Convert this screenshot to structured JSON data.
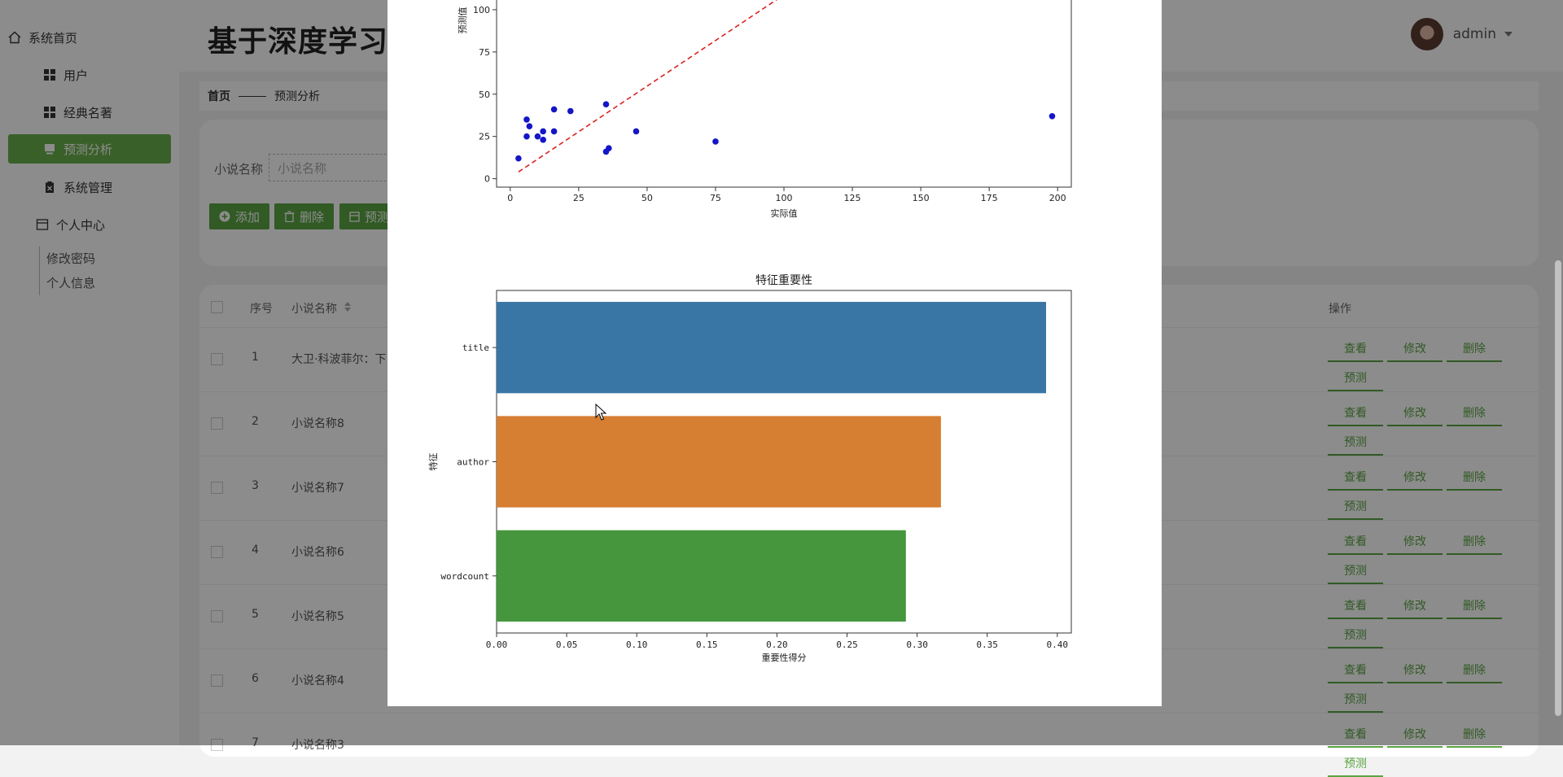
{
  "sidebar": {
    "items": [
      {
        "label": "系统首页",
        "icon": "home-icon"
      },
      {
        "label": "用户",
        "icon": "grid-icon"
      },
      {
        "label": "经典名著",
        "icon": "grid-icon"
      },
      {
        "label": "预测分析",
        "icon": "monitor-icon",
        "active": true
      },
      {
        "label": "系统管理",
        "icon": "clipboard-icon"
      },
      {
        "label": "个人中心",
        "icon": "window-icon"
      }
    ],
    "sub_items": [
      "修改密码",
      "个人信息"
    ]
  },
  "header": {
    "title": "基于深度学习的",
    "username": "admin"
  },
  "breadcrumb": {
    "home": "首页",
    "current": "预测分析"
  },
  "search": {
    "label": "小说名称",
    "placeholder": "小说名称"
  },
  "buttons": {
    "add": "添加",
    "delete": "删除",
    "predict": "预测"
  },
  "table": {
    "headers": {
      "index": "序号",
      "name": "小说名称",
      "ops": "操作"
    },
    "rows": [
      {
        "index": "1",
        "name": "大卫·科波菲尔：下"
      },
      {
        "index": "2",
        "name": "小说名称8"
      },
      {
        "index": "3",
        "name": "小说名称7"
      },
      {
        "index": "4",
        "name": "小说名称6"
      },
      {
        "index": "5",
        "name": "小说名称5"
      },
      {
        "index": "6",
        "name": "小说名称4"
      },
      {
        "index": "7",
        "name": "小说名称3"
      }
    ],
    "ops": {
      "view": "查看",
      "edit": "修改",
      "delete": "删除",
      "predict": "预测"
    }
  },
  "chart_data": [
    {
      "type": "scatter",
      "title": "",
      "xlabel": "实际值",
      "ylabel": "预测值",
      "xlim": [
        -5,
        205
      ],
      "ylim": [
        -5,
        125
      ],
      "xticks": [
        0,
        25,
        50,
        75,
        100,
        125,
        150,
        175,
        200
      ],
      "yticks": [
        0,
        25,
        50,
        75,
        100
      ],
      "point_color": "#1515c8",
      "reference_line": {
        "from": [
          3,
          4
        ],
        "to": [
          115,
          125
        ],
        "style": "dashed",
        "color": "#dd2222"
      },
      "points": [
        {
          "x": 3,
          "y": 12
        },
        {
          "x": 6,
          "y": 25
        },
        {
          "x": 6,
          "y": 35
        },
        {
          "x": 7,
          "y": 31
        },
        {
          "x": 10,
          "y": 25
        },
        {
          "x": 12,
          "y": 23
        },
        {
          "x": 12,
          "y": 28
        },
        {
          "x": 16,
          "y": 28
        },
        {
          "x": 16,
          "y": 41
        },
        {
          "x": 22,
          "y": 40
        },
        {
          "x": 35,
          "y": 16
        },
        {
          "x": 35,
          "y": 44
        },
        {
          "x": 36,
          "y": 18
        },
        {
          "x": 46,
          "y": 28
        },
        {
          "x": 75,
          "y": 22
        },
        {
          "x": 198,
          "y": 37
        }
      ]
    },
    {
      "type": "bar",
      "orientation": "horizontal",
      "title": "特征重要性",
      "xlabel": "重要性得分",
      "ylabel": "特征",
      "xlim": [
        0,
        0.41
      ],
      "xticks": [
        "0.00",
        "0.05",
        "0.10",
        "0.15",
        "0.20",
        "0.25",
        "0.30",
        "0.35",
        "0.40"
      ],
      "categories": [
        "title",
        "author",
        "wordcount"
      ],
      "values": [
        0.392,
        0.317,
        0.292
      ],
      "colors": [
        "#3a76a5",
        "#d67e32",
        "#45963d"
      ]
    }
  ]
}
